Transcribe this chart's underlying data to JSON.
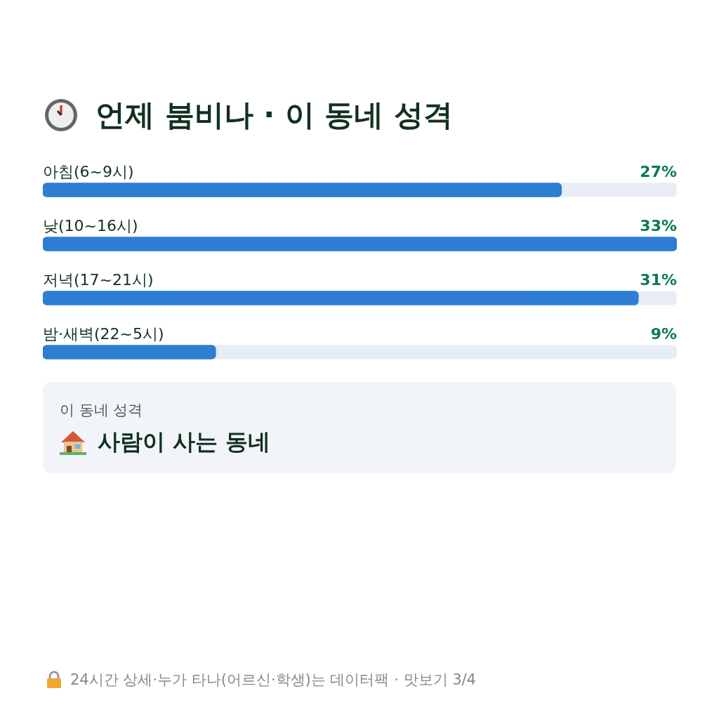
{
  "chart_data": {
    "type": "bar",
    "orientation": "horizontal",
    "tick_labels": false,
    "title": "언제 붐비나 · 이 동네 성격",
    "categories": [
      "아침(6~9시)",
      "낮(10~16시)",
      "저녁(17~21시)",
      "밤·새벽(22~5시)"
    ],
    "values": [
      27,
      33,
      31,
      9
    ],
    "value_labels": [
      "27%",
      "33%",
      "31%",
      "9%"
    ],
    "color": "#2d7dd2",
    "annotations": [
      "이 동네 성격",
      "사람이 사는 동네",
      "24시간 상세·누가 타나(어르신·학생)는 데이터팩 · 맛보기 3/4"
    ]
  }
}
